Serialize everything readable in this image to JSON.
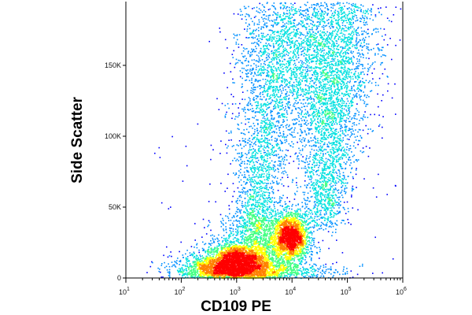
{
  "chart_data": {
    "type": "heatmap",
    "subtype": "flow-cytometry-density-scatter",
    "title": "",
    "xlabel": "CD109 PE",
    "ylabel": "Side Scatter",
    "x_scale": "log",
    "xlim": [
      10,
      1000000
    ],
    "ylim": [
      0,
      195000
    ],
    "x_ticks": [
      {
        "value": 10,
        "base": "10",
        "exp": "1"
      },
      {
        "value": 100,
        "base": "10",
        "exp": "2"
      },
      {
        "value": 1000,
        "base": "10",
        "exp": "3"
      },
      {
        "value": 10000,
        "base": "10",
        "exp": "4"
      },
      {
        "value": 100000,
        "base": "10",
        "exp": "5"
      },
      {
        "value": 1000000,
        "base": "10",
        "exp": "6"
      }
    ],
    "y_ticks": [
      {
        "value": 0,
        "label": "0"
      },
      {
        "value": 50000,
        "label": "50K"
      },
      {
        "value": 100000,
        "label": "100K"
      },
      {
        "value": 150000,
        "label": "150K"
      }
    ],
    "populations": [
      {
        "name": "low-CD109 dense cluster",
        "x_center": 1100,
        "y_center": 12000,
        "peak_density": "high"
      },
      {
        "name": "CD109-positive cluster",
        "x_center": 9500,
        "y_center": 30000,
        "peak_density": "high"
      },
      {
        "name": "high side-scatter spread",
        "x_center": 40000,
        "y_center": 150000,
        "peak_density": "low"
      }
    ],
    "colormap": [
      "#0000ff",
      "#0090ff",
      "#00e0e0",
      "#40ff80",
      "#ffff00",
      "#ff8000",
      "#ff0000"
    ],
    "grid": false,
    "legend": "none"
  }
}
